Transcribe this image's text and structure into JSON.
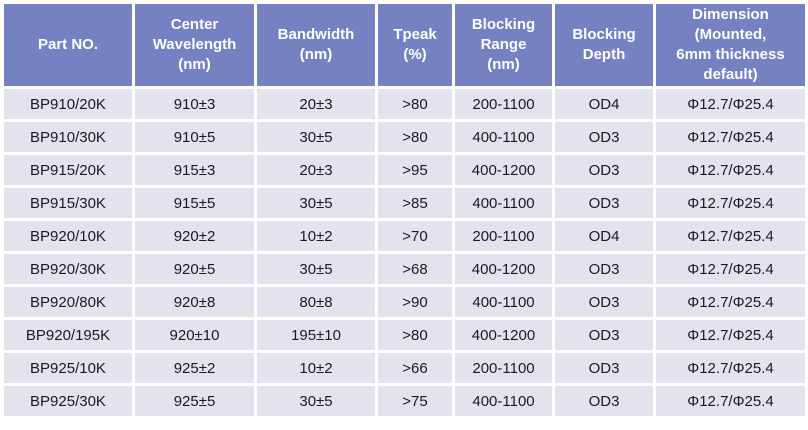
{
  "colors": {
    "header_bg": "#7581C1",
    "row_bg": "#E3E3EE",
    "grid": "#FFFFFF",
    "header_text": "#FFFFFF",
    "body_text": "#1B1B1B"
  },
  "chart_data": {
    "type": "table",
    "title": "",
    "columns": [
      {
        "key": "part-no",
        "label": "Part NO."
      },
      {
        "key": "center-wavelength",
        "label": "Center\nWavelength\n(nm)"
      },
      {
        "key": "bandwidth",
        "label": "Bandwidth\n(nm)"
      },
      {
        "key": "tpeak",
        "label": "Tpeak\n(%)"
      },
      {
        "key": "blocking-range",
        "label": "Blocking\nRange\n(nm)"
      },
      {
        "key": "blocking-depth",
        "label": "Blocking\nDepth"
      },
      {
        "key": "dimension",
        "label": "Dimension\n(Mounted,\n6mm thickness\ndefault)"
      }
    ],
    "rows": [
      [
        "BP910/20K",
        "910±3",
        "20±3",
        ">80",
        "200-1100",
        "OD4",
        "Φ12.7/Φ25.4"
      ],
      [
        "BP910/30K",
        "910±5",
        "30±5",
        ">80",
        "400-1100",
        "OD3",
        "Φ12.7/Φ25.4"
      ],
      [
        "BP915/20K",
        "915±3",
        "20±3",
        ">95",
        "400-1200",
        "OD3",
        "Φ12.7/Φ25.4"
      ],
      [
        "BP915/30K",
        "915±5",
        "30±5",
        ">85",
        "400-1100",
        "OD3",
        "Φ12.7/Φ25.4"
      ],
      [
        "BP920/10K",
        "920±2",
        "10±2",
        ">70",
        "200-1100",
        "OD4",
        "Φ12.7/Φ25.4"
      ],
      [
        "BP920/30K",
        "920±5",
        "30±5",
        ">68",
        "400-1200",
        "OD3",
        "Φ12.7/Φ25.4"
      ],
      [
        "BP920/80K",
        "920±8",
        "80±8",
        ">90",
        "400-1100",
        "OD3",
        "Φ12.7/Φ25.4"
      ],
      [
        "BP920/195K",
        "920±10",
        "195±10",
        ">80",
        "400-1200",
        "OD3",
        "Φ12.7/Φ25.4"
      ],
      [
        "BP925/10K",
        "925±2",
        "10±2",
        ">66",
        "200-1100",
        "OD3",
        "Φ12.7/Φ25.4"
      ],
      [
        "BP925/30K",
        "925±5",
        "30±5",
        ">75",
        "400-1100",
        "OD3",
        "Φ12.7/Φ25.4"
      ]
    ]
  }
}
